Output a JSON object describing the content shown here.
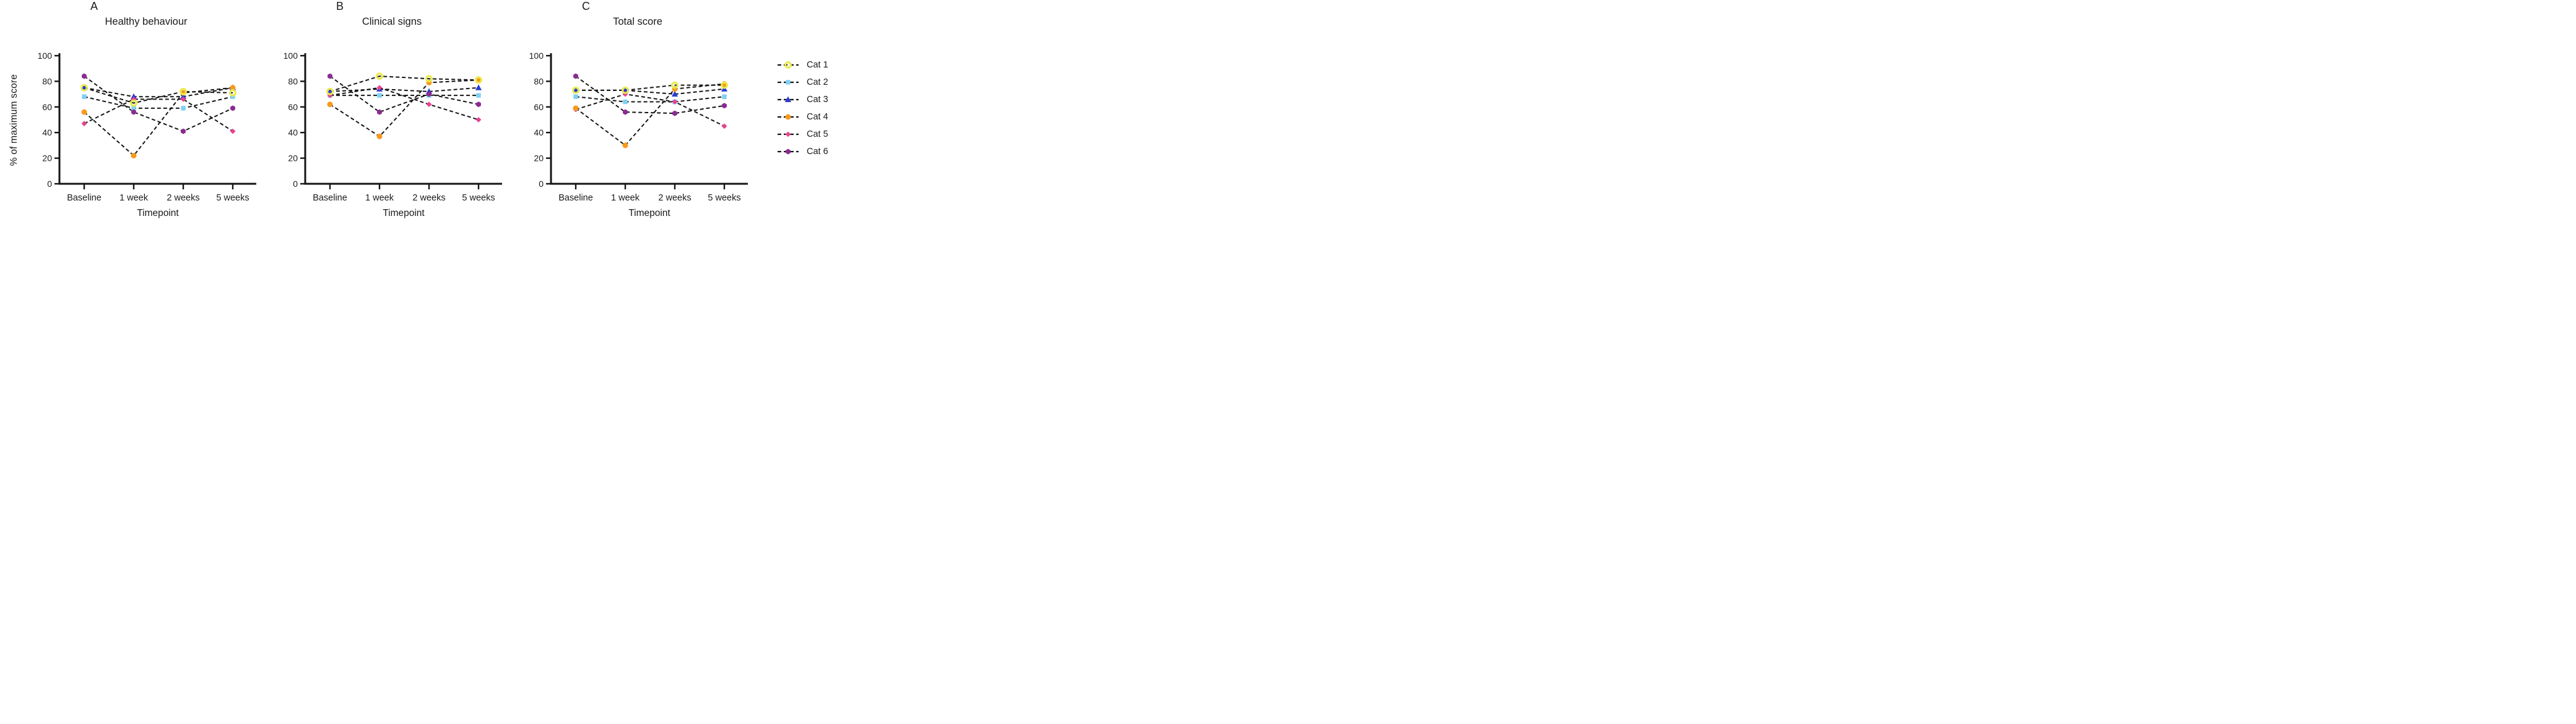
{
  "figure": {
    "y_axis_label": "% of maximum score",
    "x_axis_label": "Timepoint",
    "background": "#ffffff",
    "line_color": "#141414",
    "y_ticks": [
      0,
      20,
      40,
      60,
      80,
      100
    ],
    "categories": [
      "Baseline",
      "1 week",
      "2 weeks",
      "5 weeks"
    ]
  },
  "series_styles": [
    {
      "name": "Cat 1",
      "marker": "ring-circle",
      "color": "#eaea49"
    },
    {
      "name": "Cat 2",
      "marker": "square",
      "color": "#7fd1f1"
    },
    {
      "name": "Cat 3",
      "marker": "triangle-up",
      "color": "#2b3bd5"
    },
    {
      "name": "Cat 4",
      "marker": "circle",
      "color": "#f8991d"
    },
    {
      "name": "Cat 5",
      "marker": "diamond",
      "color": "#e84190"
    },
    {
      "name": "Cat 6",
      "marker": "hexagon",
      "color": "#8b2b91"
    }
  ],
  "legend": {
    "items": [
      {
        "label": "Cat 1",
        "marker": "ring-circle",
        "color": "#eaea49"
      },
      {
        "label": "Cat 2",
        "marker": "square",
        "color": "#7fd1f1"
      },
      {
        "label": "Cat 3",
        "marker": "triangle-up",
        "color": "#2b3bd5"
      },
      {
        "label": "Cat 4",
        "marker": "circle",
        "color": "#f8991d"
      },
      {
        "label": "Cat 5",
        "marker": "diamond",
        "color": "#e84190"
      },
      {
        "label": "Cat 6",
        "marker": "hexagon",
        "color": "#8b2b91"
      }
    ]
  },
  "chart_data": [
    {
      "type": "line",
      "panel_letter": "A",
      "title": "Healthy behaviour",
      "xlabel": "Timepoint",
      "ylabel": "% of maximum score",
      "ylim": [
        0,
        100
      ],
      "grid": false,
      "categories": [
        "Baseline",
        "1 week",
        "2 weeks",
        "5 weeks"
      ],
      "series": [
        {
          "name": "Cat 1",
          "values": [
            75,
            63,
            72,
            71
          ]
        },
        {
          "name": "Cat 2",
          "values": [
            68,
            59,
            59,
            68
          ]
        },
        {
          "name": "Cat 3",
          "values": [
            75,
            68,
            68,
            75
          ]
        },
        {
          "name": "Cat 4",
          "values": [
            56,
            22,
            71,
            75
          ]
        },
        {
          "name": "Cat 5",
          "values": [
            47,
            66,
            66,
            41
          ]
        },
        {
          "name": "Cat 6",
          "values": [
            84,
            56,
            41,
            59
          ]
        }
      ]
    },
    {
      "type": "line",
      "panel_letter": "B",
      "title": "Clinical signs",
      "xlabel": "Timepoint",
      "ylabel": "% of maximum score",
      "ylim": [
        0,
        100
      ],
      "grid": false,
      "categories": [
        "Baseline",
        "1 week",
        "2 weeks",
        "5 weeks"
      ],
      "series": [
        {
          "name": "Cat 1",
          "values": [
            72,
            84,
            82,
            81
          ]
        },
        {
          "name": "Cat 2",
          "values": [
            69,
            69,
            69,
            69
          ]
        },
        {
          "name": "Cat 3",
          "values": [
            72,
            74,
            72,
            75
          ]
        },
        {
          "name": "Cat 4",
          "values": [
            62,
            37,
            79,
            81
          ]
        },
        {
          "name": "Cat 5",
          "values": [
            69,
            75,
            62,
            50
          ]
        },
        {
          "name": "Cat 6",
          "values": [
            84,
            56,
            70,
            62
          ]
        }
      ]
    },
    {
      "type": "line",
      "panel_letter": "C",
      "title": "Total score",
      "xlabel": "Timepoint",
      "ylabel": "% of maximum score",
      "ylim": [
        0,
        100
      ],
      "grid": false,
      "categories": [
        "Baseline",
        "1 week",
        "2 weeks",
        "5 weeks"
      ],
      "series": [
        {
          "name": "Cat 1",
          "values": [
            73,
            73,
            77,
            77
          ]
        },
        {
          "name": "Cat 2",
          "values": [
            68,
            64,
            64,
            68
          ]
        },
        {
          "name": "Cat 3",
          "values": [
            73,
            73,
            70,
            74
          ]
        },
        {
          "name": "Cat 4",
          "values": [
            59,
            30,
            74,
            78
          ]
        },
        {
          "name": "Cat 5",
          "values": [
            58,
            70,
            64,
            45
          ]
        },
        {
          "name": "Cat 6",
          "values": [
            84,
            56,
            55,
            61
          ]
        }
      ]
    }
  ]
}
